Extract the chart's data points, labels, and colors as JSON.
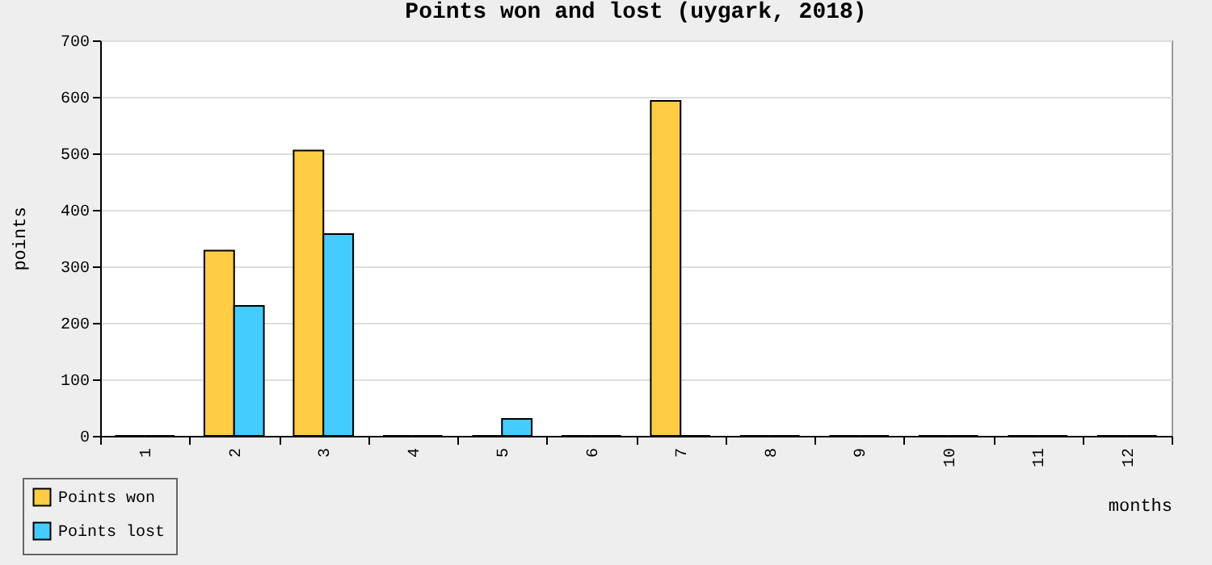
{
  "chart_data": {
    "type": "bar",
    "title": "Points won and lost (uygark, 2018)",
    "xlabel": "months",
    "ylabel": "points",
    "categories": [
      "1",
      "2",
      "3",
      "4",
      "5",
      "6",
      "7",
      "8",
      "9",
      "10",
      "11",
      "12"
    ],
    "series": [
      {
        "name": "Points won",
        "color": "#ffcc44",
        "values": [
          0,
          328,
          505,
          0,
          0,
          0,
          593,
          0,
          0,
          0,
          0,
          0
        ]
      },
      {
        "name": "Points lost",
        "color": "#44ccff",
        "values": [
          0,
          230,
          357,
          0,
          30,
          0,
          0,
          0,
          0,
          0,
          0,
          0
        ]
      }
    ],
    "ylim": [
      0,
      700
    ],
    "yticks": [
      0,
      100,
      200,
      300,
      400,
      500,
      600,
      700
    ],
    "grid": "y",
    "legend": "bottom left"
  }
}
